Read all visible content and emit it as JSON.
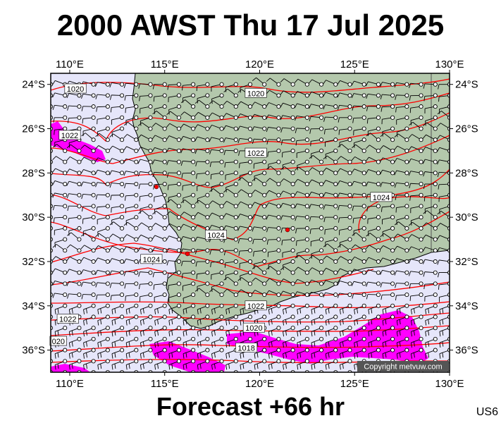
{
  "header": {
    "title": "2000 AWST Thu 17 Jul 2025"
  },
  "footer": {
    "forecast": "Forecast +66 hr",
    "model": "US6"
  },
  "copyright": "Copyright metvuw.com",
  "map": {
    "lon_range": [
      109,
      130
    ],
    "lat_range": [
      -37,
      -23.5
    ],
    "lon_ticks": [
      "110°E",
      "115°E",
      "120°E",
      "125°E",
      "130°E"
    ],
    "lat_ticks": [
      "24°S",
      "26°S",
      "28°S",
      "30°S",
      "32°S",
      "34°S",
      "36°S"
    ],
    "colors": {
      "sea": "#e6e6fa",
      "land": "#b4c8ac",
      "isobar": "#ff0000",
      "rain": "#ff00ff"
    },
    "isobar_labels": [
      {
        "text": "1020",
        "lon": 110.3,
        "lat": -24.2
      },
      {
        "text": "1020",
        "lon": 119.8,
        "lat": -24.4
      },
      {
        "text": "1022",
        "lon": 110,
        "lat": -26.3
      },
      {
        "text": "1022",
        "lon": 119.8,
        "lat": -27.1
      },
      {
        "text": "1024",
        "lon": 126.4,
        "lat": -29.1
      },
      {
        "text": "1024",
        "lon": 117.7,
        "lat": -30.8
      },
      {
        "text": "1024",
        "lon": 114.3,
        "lat": -31.9
      },
      {
        "text": "1022",
        "lon": 119.8,
        "lat": -34
      },
      {
        "text": "1022",
        "lon": 109.9,
        "lat": -34.6
      },
      {
        "text": "1020",
        "lon": 119.7,
        "lat": -35
      },
      {
        "text": "020",
        "lon": 109.4,
        "lat": -35.6
      },
      {
        "text": "1018",
        "lon": 119.3,
        "lat": -35.9
      }
    ]
  }
}
